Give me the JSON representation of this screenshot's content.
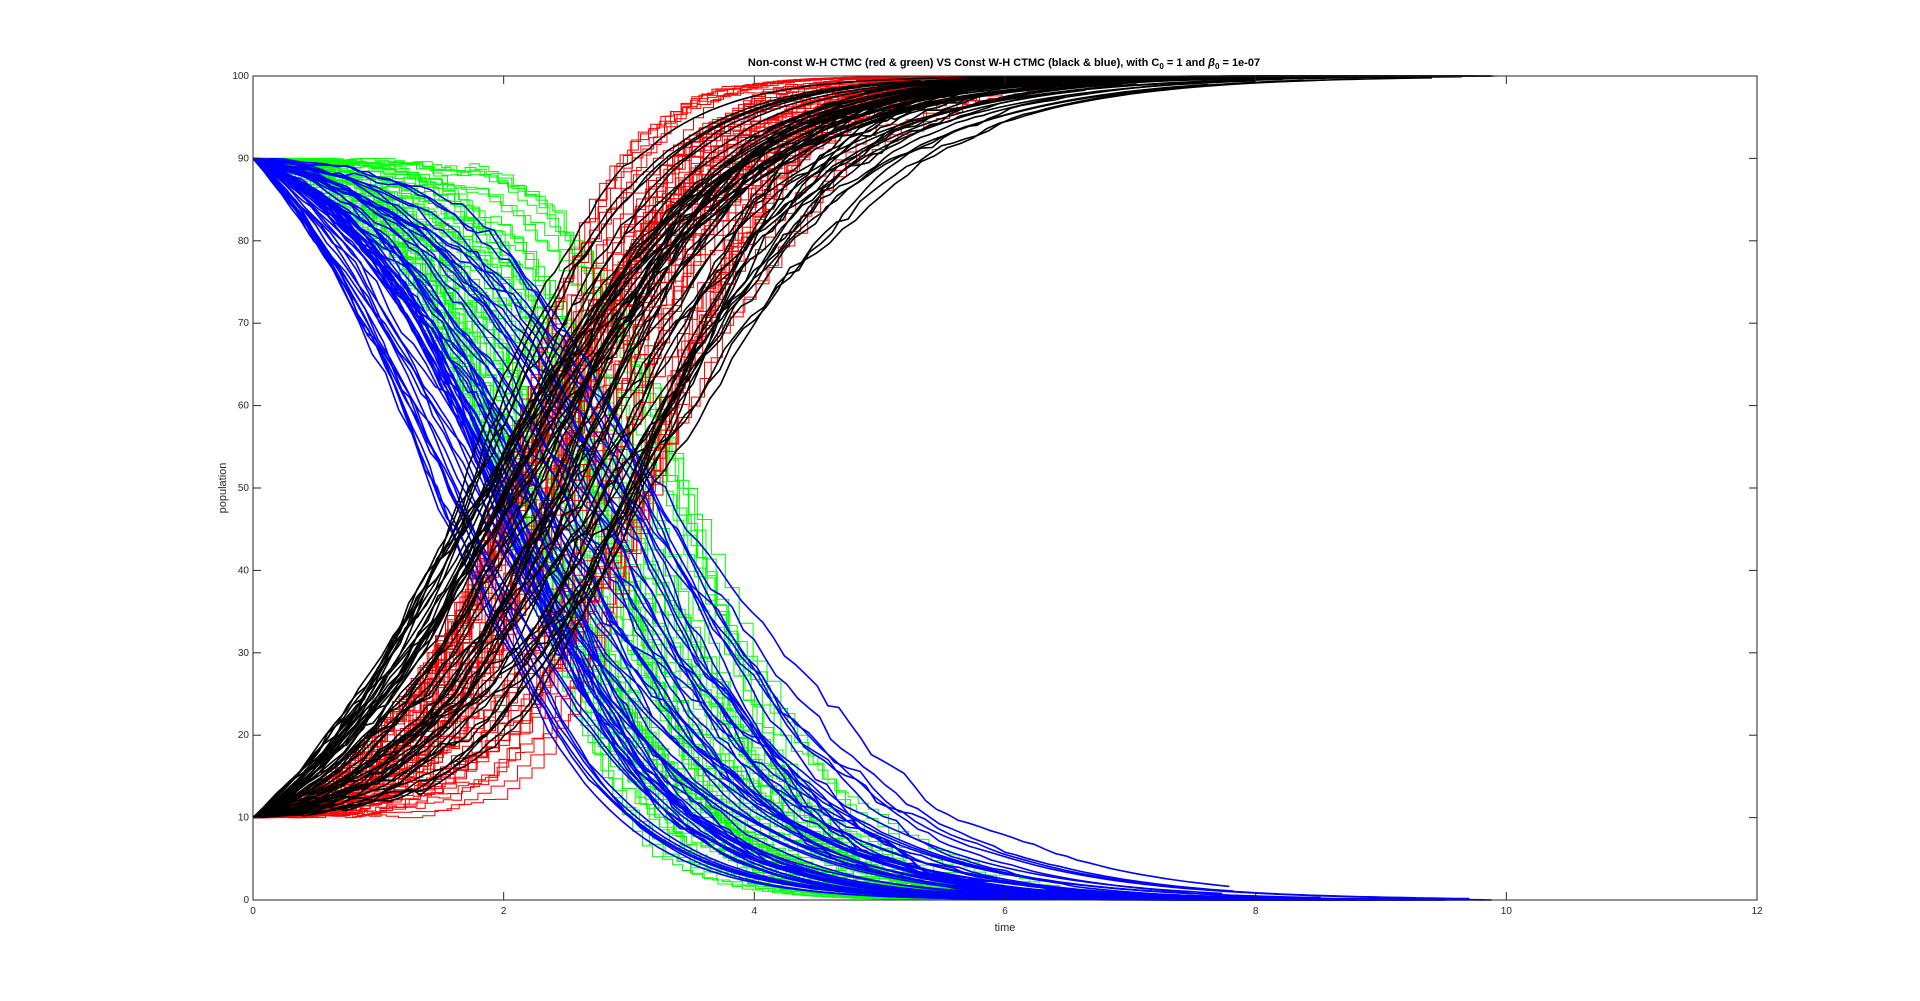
{
  "chart_data": {
    "type": "line",
    "title": "Non-const W-H CTMC (red & green) VS Const W-H CTMC (black & blue), with C",
    "title_sub1": "0",
    "title_mid": " = 1 and ",
    "title_beta": "β",
    "title_sub2": "0",
    "title_end": " = 1e-07",
    "xlabel": "time",
    "ylabel": "population",
    "xlim": [
      0,
      12
    ],
    "ylim": [
      0,
      100
    ],
    "xticks": [
      0,
      2,
      4,
      6,
      8,
      10,
      12
    ],
    "yticks": [
      0,
      10,
      20,
      30,
      40,
      50,
      60,
      70,
      80,
      90,
      100
    ],
    "grid": false,
    "series_groups": [
      {
        "color": "#00ff00",
        "style": "step",
        "start": 90,
        "end": 0,
        "direction": "decreasing",
        "runs": 60,
        "midpoint_time": [
          2.0,
          3.6
        ],
        "rate": [
          1.3,
          2.4
        ],
        "terminal_time": [
          3.0,
          10.4
        ]
      },
      {
        "color": "#ff0000",
        "style": "step",
        "start": 10,
        "end": 100,
        "direction": "increasing",
        "runs": 60,
        "midpoint_time": [
          2.0,
          3.3
        ],
        "rate": [
          1.3,
          2.4
        ],
        "terminal_time": [
          3.0,
          10.4
        ]
      },
      {
        "color": "#0000ff",
        "style": "smooth",
        "start": 90,
        "end": 0,
        "direction": "decreasing",
        "runs": 60,
        "midpoint_time": [
          1.4,
          3.5
        ],
        "rate": [
          0.9,
          1.6
        ],
        "terminal_time": [
          7.0,
          10.0
        ]
      },
      {
        "color": "#000000",
        "style": "smooth",
        "start": 10,
        "end": 100,
        "direction": "increasing",
        "runs": 60,
        "midpoint_time": [
          1.7,
          3.6
        ],
        "rate": [
          0.9,
          1.6
        ],
        "terminal_time": [
          7.0,
          10.0
        ]
      }
    ]
  }
}
